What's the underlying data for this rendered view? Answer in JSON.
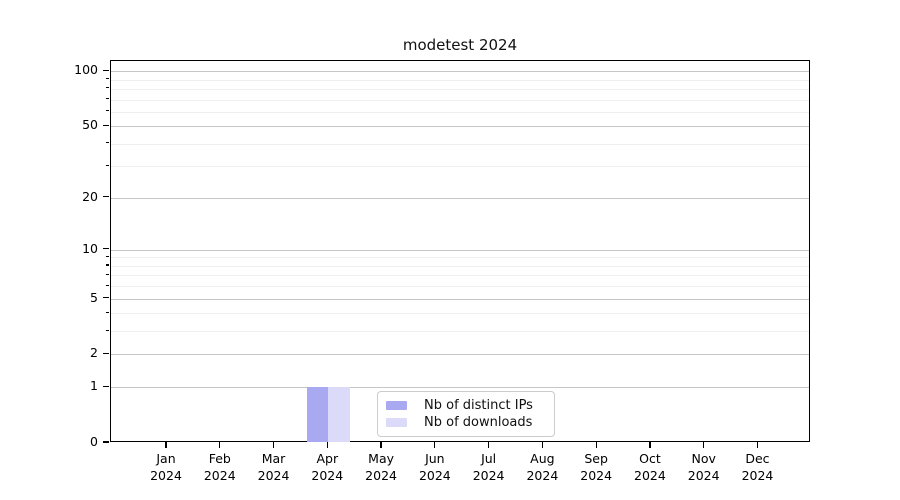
{
  "figure": {
    "background": "#ffffff"
  },
  "chart_data": {
    "type": "bar",
    "title": "modetest 2024",
    "categories": [
      "Jan",
      "Feb",
      "Mar",
      "Apr",
      "May",
      "Jun",
      "Jul",
      "Aug",
      "Sep",
      "Oct",
      "Nov",
      "Dec"
    ],
    "category_year": "2024",
    "series": [
      {
        "name": "Nb of distinct IPs",
        "color": "#a9a9f1",
        "values": [
          0,
          0,
          0,
          1,
          0,
          0,
          0,
          0,
          0,
          0,
          0,
          0
        ]
      },
      {
        "name": "Nb of downloads",
        "color": "#dbdbf9",
        "values": [
          0,
          0,
          0,
          1,
          0,
          0,
          0,
          0,
          0,
          0,
          0,
          0
        ]
      }
    ],
    "xlabel": "",
    "ylabel": "",
    "yscale": "log1p",
    "ylim": [
      0,
      113.5
    ],
    "y_major_ticks": [
      0,
      1,
      2,
      5,
      10,
      20,
      50,
      100
    ],
    "y_minor_ticks": [
      3,
      4,
      6,
      7,
      8,
      9,
      30,
      40,
      60,
      70,
      80,
      90
    ],
    "grid": {
      "axis": "y",
      "major_color": "#c6c6c6",
      "minor_color": "#efefef"
    },
    "legend": {
      "position": "inside-lower-center",
      "items": [
        "Nb of distinct IPs",
        "Nb of downloads"
      ]
    }
  },
  "colors": {
    "spine": "#000000",
    "tick_label": "#000000",
    "legend_border": "#cccccc",
    "legend_background": "#ffffff"
  }
}
